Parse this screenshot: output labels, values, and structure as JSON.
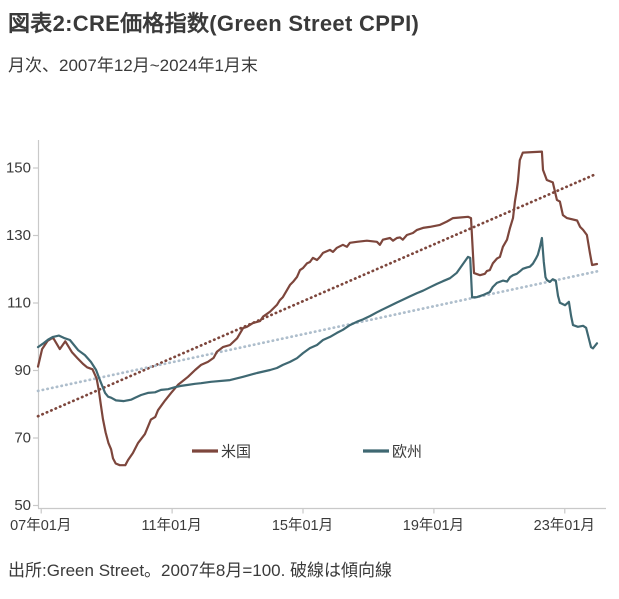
{
  "header": {
    "title": "図表2:CRE価格指数(Green Street CPPI)",
    "subtitle": "月次、2007年12月~2024年1月末"
  },
  "footer": {
    "source": "出所:Green Street。2007年8月=100. 破線は傾向線"
  },
  "chart_data": {
    "type": "line",
    "title": "図表2:CRE価格指数(Green Street CPPI)",
    "subtitle": "月次、2007年12月~2024年1月末",
    "note": "2007年8月=100、破線は傾向線",
    "grid": false,
    "legend_position": "inside-bottom",
    "x_axis": {
      "tick_labels": [
        "07年01月",
        "11年01月",
        "15年01月",
        "19年01月",
        "23年01月"
      ],
      "tick_months": [
        1,
        49,
        97,
        145,
        193
      ],
      "range_months": [
        0,
        205
      ]
    },
    "y_axis": {
      "ticks": [
        50,
        70,
        90,
        110,
        130,
        150
      ],
      "range": [
        50,
        158
      ]
    },
    "colors": {
      "us": "#7D463C",
      "europe": "#3F6872",
      "us_trend": "#7D463C",
      "europe_trend": "#AEBECC",
      "axis": "#c9c9c9",
      "text": "#3a3a3a"
    },
    "legend": [
      {
        "key": "us",
        "label": "米国",
        "color": "#7D463C"
      },
      {
        "key": "europe",
        "label": "欧州",
        "color": "#3F6872"
      }
    ],
    "series": [
      {
        "key": "us-trend",
        "name": "米国傾向線",
        "color": "#7D463C",
        "style": "dotted",
        "points": [
          [
            0,
            76.3
          ],
          [
            205,
            148.2
          ]
        ]
      },
      {
        "key": "europe-trend",
        "name": "欧州傾向線",
        "color": "#AEBECC",
        "style": "dotted",
        "points": [
          [
            0,
            83.8
          ],
          [
            205,
            119.2
          ]
        ]
      },
      {
        "key": "us",
        "name": "米国",
        "color": "#7D463C",
        "style": "solid",
        "points": [
          [
            0,
            91
          ],
          [
            1.5,
            96.2
          ],
          [
            3.5,
            98.6
          ],
          [
            5.5,
            99.6
          ],
          [
            8,
            96.2
          ],
          [
            10,
            98.5
          ],
          [
            12.5,
            95.2
          ],
          [
            14.5,
            93.5
          ],
          [
            16.5,
            91.8
          ],
          [
            18,
            90.8
          ],
          [
            20,
            90.2
          ],
          [
            21.5,
            87.5
          ],
          [
            22.3,
            84
          ],
          [
            23,
            80
          ],
          [
            23.8,
            75.5
          ],
          [
            24.8,
            71.5
          ],
          [
            25.8,
            68.4
          ],
          [
            26.8,
            66.5
          ],
          [
            27.5,
            63.8
          ],
          [
            28.5,
            62.3
          ],
          [
            30,
            61.8
          ],
          [
            32,
            61.8
          ],
          [
            33,
            63.3
          ],
          [
            34.8,
            65.4
          ],
          [
            36.7,
            68.4
          ],
          [
            39.2,
            71
          ],
          [
            41.4,
            75.3
          ],
          [
            43,
            76.1
          ],
          [
            44,
            78.1
          ],
          [
            46.6,
            81
          ],
          [
            48.8,
            83.2
          ],
          [
            51.3,
            85.6
          ],
          [
            55,
            88
          ],
          [
            57.6,
            90
          ],
          [
            59.8,
            91.5
          ],
          [
            62.3,
            92.4
          ],
          [
            64.4,
            93.6
          ],
          [
            65.6,
            95.4
          ],
          [
            67.8,
            96.8
          ],
          [
            70.4,
            97.4
          ],
          [
            73,
            99.4
          ],
          [
            75.2,
            102.4
          ],
          [
            76.6,
            102.8
          ],
          [
            78.8,
            103.9
          ],
          [
            81.4,
            104.5
          ],
          [
            82.5,
            105.8
          ],
          [
            85.1,
            107.3
          ],
          [
            87.6,
            109.3
          ],
          [
            88.7,
            110.7
          ],
          [
            89.8,
            111.6
          ],
          [
            92.4,
            115.2
          ],
          [
            93.5,
            116.1
          ],
          [
            95,
            117.6
          ],
          [
            96.1,
            119.6
          ],
          [
            97.2,
            120.2
          ],
          [
            98.6,
            121.6
          ],
          [
            99.7,
            122
          ],
          [
            100.8,
            123.2
          ],
          [
            102.3,
            122.6
          ],
          [
            103.4,
            123.5
          ],
          [
            104.5,
            124.7
          ],
          [
            107.1,
            125.6
          ],
          [
            108.2,
            125
          ],
          [
            109.6,
            126.2
          ],
          [
            111.8,
            127.1
          ],
          [
            113.3,
            126.5
          ],
          [
            114.4,
            127.7
          ],
          [
            117,
            128
          ],
          [
            120.6,
            128.3
          ],
          [
            124.3,
            128
          ],
          [
            125.4,
            127.1
          ],
          [
            126.5,
            128.6
          ],
          [
            129.1,
            129.1
          ],
          [
            130.2,
            128.3
          ],
          [
            131.6,
            129.1
          ],
          [
            132.7,
            129.3
          ],
          [
            133.8,
            128.6
          ],
          [
            135.3,
            130
          ],
          [
            137.5,
            130.6
          ],
          [
            139,
            131.5
          ],
          [
            141.2,
            132.1
          ],
          [
            143.7,
            132.4
          ],
          [
            147.4,
            133
          ],
          [
            150,
            134
          ],
          [
            152.2,
            135
          ],
          [
            154.8,
            135.2
          ],
          [
            157.7,
            135.4
          ],
          [
            158.8,
            135
          ],
          [
            159.9,
            118.7
          ],
          [
            162.1,
            118.1
          ],
          [
            163.9,
            118.5
          ],
          [
            164.6,
            119.3
          ],
          [
            165.7,
            119.6
          ],
          [
            166.8,
            121.6
          ],
          [
            168.3,
            123
          ],
          [
            169.4,
            123.5
          ],
          [
            170.5,
            126.5
          ],
          [
            172,
            128.6
          ],
          [
            173.1,
            132.1
          ],
          [
            174.2,
            135
          ],
          [
            174.9,
            139.9
          ],
          [
            175.6,
            143.4
          ],
          [
            176,
            145.8
          ],
          [
            176.7,
            152.2
          ],
          [
            177.8,
            154.4
          ],
          [
            184.8,
            154.7
          ],
          [
            185.2,
            149.3
          ],
          [
            186.6,
            146.3
          ],
          [
            188.8,
            145.6
          ],
          [
            190.3,
            140.4
          ],
          [
            191.4,
            139.9
          ],
          [
            192.5,
            135.9
          ],
          [
            194,
            135
          ],
          [
            197.7,
            134.3
          ],
          [
            198.8,
            132.4
          ],
          [
            199.9,
            131.5
          ],
          [
            201.3,
            130
          ],
          [
            202.4,
            124.7
          ],
          [
            203.2,
            121.1
          ],
          [
            205,
            121.4
          ]
        ]
      },
      {
        "key": "europe",
        "name": "欧州",
        "color": "#3F6872",
        "style": "solid",
        "points": [
          [
            0,
            96.8
          ],
          [
            1.8,
            97.8
          ],
          [
            3.7,
            99
          ],
          [
            5.5,
            99.8
          ],
          [
            7.7,
            100.2
          ],
          [
            9.5,
            99.5
          ],
          [
            11.7,
            98.9
          ],
          [
            14.7,
            95.9
          ],
          [
            17.2,
            94.4
          ],
          [
            19.4,
            92.4
          ],
          [
            21.3,
            90
          ],
          [
            22.7,
            87
          ],
          [
            24.6,
            83.2
          ],
          [
            25.7,
            82.1
          ],
          [
            26.8,
            81.8
          ],
          [
            28.6,
            81
          ],
          [
            31.5,
            80.8
          ],
          [
            34.1,
            81.2
          ],
          [
            35.6,
            81.8
          ],
          [
            37.8,
            82.6
          ],
          [
            40.3,
            83.2
          ],
          [
            42.9,
            83.4
          ],
          [
            45.1,
            84.1
          ],
          [
            47.7,
            84.3
          ],
          [
            50.2,
            84.9
          ],
          [
            52.4,
            85.3
          ],
          [
            55,
            85.6
          ],
          [
            57.6,
            85.9
          ],
          [
            59.8,
            86.1
          ],
          [
            63.4,
            86.5
          ],
          [
            70.4,
            87
          ],
          [
            75.2,
            88
          ],
          [
            80.3,
            89.1
          ],
          [
            85.1,
            90
          ],
          [
            87.6,
            90.6
          ],
          [
            89.8,
            91.5
          ],
          [
            92.4,
            92.4
          ],
          [
            95,
            93.5
          ],
          [
            97.2,
            95
          ],
          [
            99.7,
            96.5
          ],
          [
            102.3,
            97.4
          ],
          [
            104.5,
            98.9
          ],
          [
            107.1,
            99.8
          ],
          [
            109.6,
            101
          ],
          [
            111.8,
            101.9
          ],
          [
            114.4,
            103.3
          ],
          [
            117,
            104.3
          ],
          [
            119.2,
            105
          ],
          [
            121.8,
            106
          ],
          [
            124.3,
            107.1
          ],
          [
            126.5,
            108
          ],
          [
            129.1,
            109
          ],
          [
            131.6,
            110
          ],
          [
            133.8,
            110.8
          ],
          [
            136.4,
            111.8
          ],
          [
            139,
            112.8
          ],
          [
            141.2,
            113.5
          ],
          [
            143.7,
            114.5
          ],
          [
            146.3,
            115.5
          ],
          [
            148.5,
            116.3
          ],
          [
            151.1,
            117.2
          ],
          [
            153.6,
            118.8
          ],
          [
            155.5,
            121
          ],
          [
            157.7,
            123.5
          ],
          [
            158.5,
            123.2
          ],
          [
            159.2,
            111.5
          ],
          [
            161,
            111.6
          ],
          [
            163.2,
            112.2
          ],
          [
            165.7,
            113.1
          ],
          [
            166.8,
            114.6
          ],
          [
            168.3,
            115.8
          ],
          [
            170.5,
            116.5
          ],
          [
            172,
            116.2
          ],
          [
            173.1,
            117.5
          ],
          [
            174.2,
            118.1
          ],
          [
            175.6,
            118.5
          ],
          [
            176.7,
            119.2
          ],
          [
            177.8,
            120
          ],
          [
            179.3,
            120.4
          ],
          [
            180.4,
            120.6
          ],
          [
            181.5,
            121.5
          ],
          [
            182.6,
            123
          ],
          [
            183.3,
            124.1
          ],
          [
            184.1,
            126.5
          ],
          [
            184.8,
            129.1
          ],
          [
            185.5,
            122
          ],
          [
            186.1,
            117.5
          ],
          [
            186.6,
            116.7
          ],
          [
            187.7,
            116.1
          ],
          [
            188.8,
            116.9
          ],
          [
            189.9,
            116.5
          ],
          [
            190.7,
            112
          ],
          [
            191.4,
            109.9
          ],
          [
            193.3,
            109.2
          ],
          [
            194.7,
            110.2
          ],
          [
            195.5,
            106
          ],
          [
            196.2,
            103.3
          ],
          [
            198,
            102.8
          ],
          [
            199.9,
            103.1
          ],
          [
            201,
            102.5
          ],
          [
            202.1,
            99
          ],
          [
            202.8,
            96.8
          ],
          [
            203.5,
            96.4
          ],
          [
            205,
            97.9
          ]
        ]
      }
    ]
  }
}
